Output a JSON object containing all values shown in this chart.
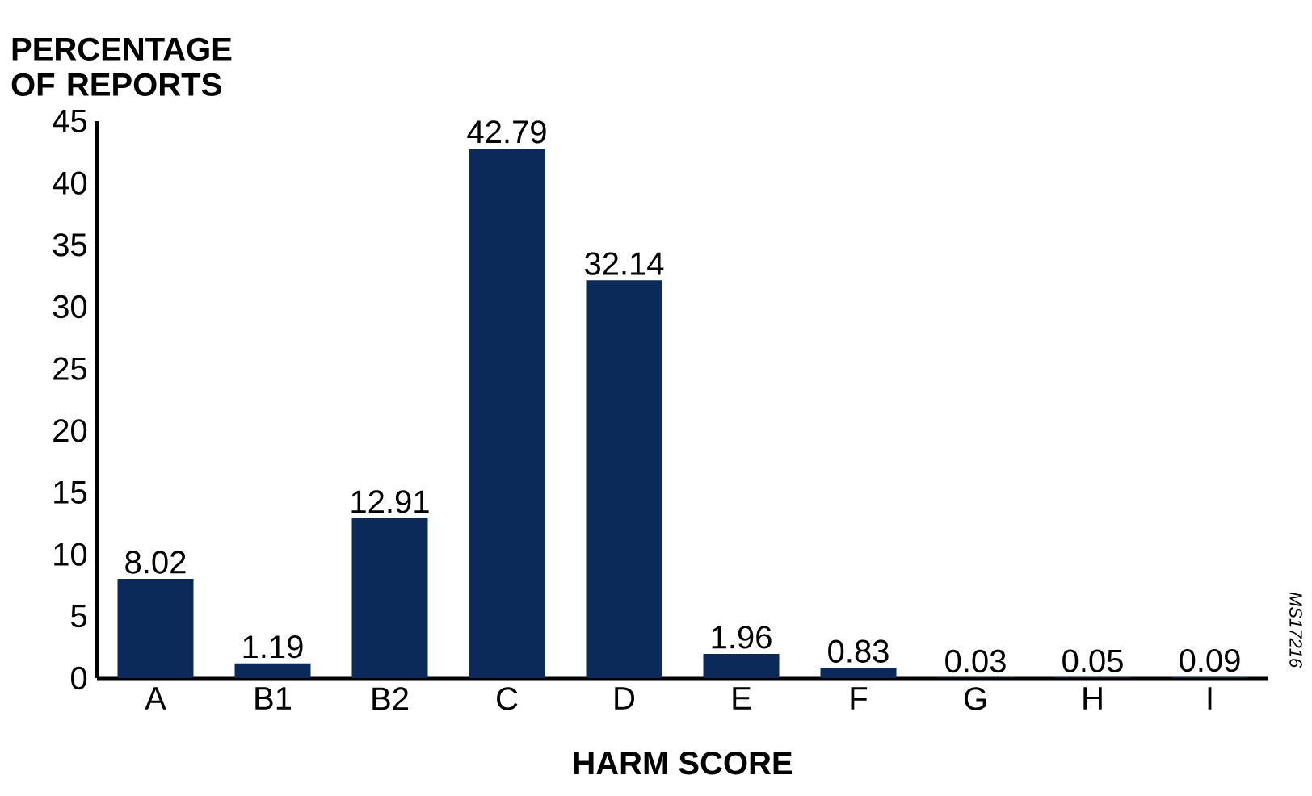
{
  "chart_data": {
    "type": "bar",
    "ylabel": "PERCENTAGE OF REPORTS",
    "xlabel": "HARM SCORE",
    "categories": [
      "A",
      "B1",
      "B2",
      "C",
      "D",
      "E",
      "F",
      "G",
      "H",
      "I"
    ],
    "values": [
      8.02,
      1.19,
      12.91,
      42.79,
      32.14,
      1.96,
      0.83,
      0.03,
      0.05,
      0.09
    ],
    "color": "#0b2a5a",
    "ylim": [
      0,
      45
    ],
    "yticks": [
      0,
      5,
      10,
      15,
      20,
      25,
      30,
      35,
      40,
      45
    ],
    "data_labels": true,
    "annotations": [
      "MS17216"
    ]
  }
}
